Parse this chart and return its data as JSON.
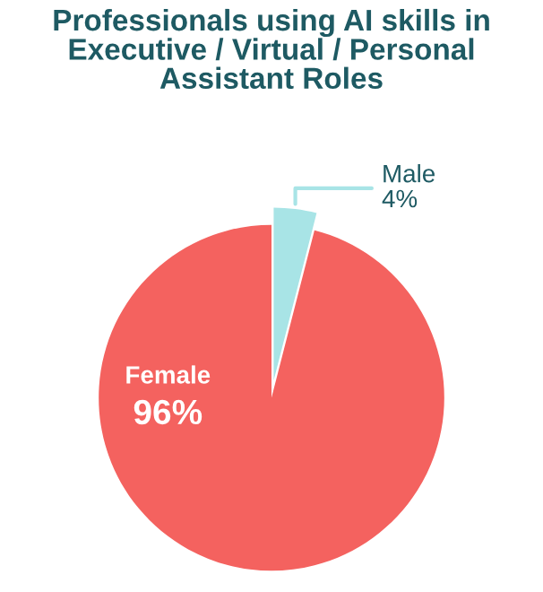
{
  "chart_data": {
    "type": "pie",
    "title": "Professionals using AI skills in Executive / Virtual / Personal Assistant Roles",
    "categories": [
      "Female",
      "Male"
    ],
    "values": [
      96,
      4
    ],
    "colors": [
      "#f4625f",
      "#a8e4e6"
    ],
    "value_labels": [
      "96%",
      "4%"
    ]
  }
}
